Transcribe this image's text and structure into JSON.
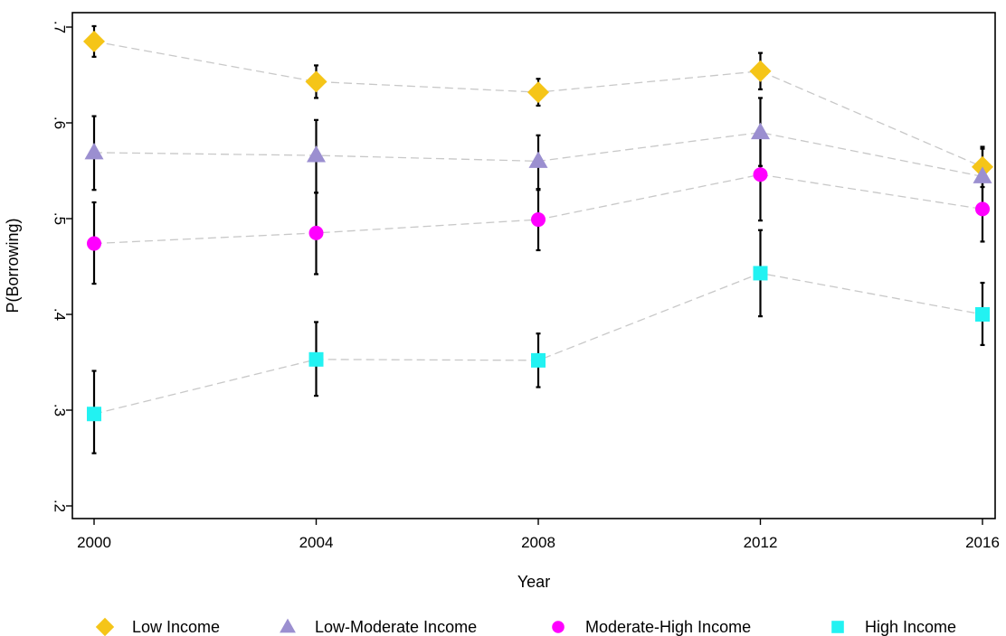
{
  "chart_data": {
    "type": "scatter",
    "title": "",
    "xlabel": "Year",
    "ylabel": "P(Borrowing)",
    "x": [
      2000,
      2004,
      2008,
      2012,
      2016
    ],
    "xticks": [
      "2000",
      "2004",
      "2008",
      "2012",
      "2016"
    ],
    "xlim": [
      2000,
      2016
    ],
    "yticks": [
      {
        "value": 0.2,
        "label": ".2"
      },
      {
        "value": 0.3,
        "label": ".3"
      },
      {
        "value": 0.4,
        "label": ".4"
      },
      {
        "value": 0.5,
        "label": ".5"
      },
      {
        "value": 0.6,
        "label": ".6"
      },
      {
        "value": 0.7,
        "label": ".7"
      }
    ],
    "ylim": [
      0.18,
      0.72
    ],
    "grid": false,
    "legend_position": "bottom",
    "connector_color": "#c8c8c8",
    "errorbar_color": "#000000",
    "series": [
      {
        "name": "Low Income",
        "marker": "diamond",
        "color": "#f5c518",
        "values": [
          0.685,
          0.643,
          0.632,
          0.654,
          0.554
        ],
        "ci_low": [
          0.669,
          0.626,
          0.618,
          0.635,
          0.533
        ],
        "ci_high": [
          0.701,
          0.66,
          0.646,
          0.673,
          0.575
        ]
      },
      {
        "name": "Low-Moderate Income",
        "marker": "triangle",
        "color": "#9b8fd0",
        "values": [
          0.569,
          0.566,
          0.56,
          0.59,
          0.544
        ],
        "ci_low": [
          0.53,
          0.527,
          0.53,
          0.555,
          0.515
        ],
        "ci_high": [
          0.607,
          0.603,
          0.587,
          0.626,
          0.573
        ]
      },
      {
        "name": "Moderate-High Income",
        "marker": "circle",
        "color": "#ff00ff",
        "values": [
          0.474,
          0.485,
          0.499,
          0.546,
          0.51
        ],
        "ci_low": [
          0.432,
          0.442,
          0.467,
          0.498,
          0.476
        ],
        "ci_high": [
          0.517,
          0.527,
          0.531,
          0.594,
          0.544
        ]
      },
      {
        "name": "High Income",
        "marker": "square",
        "color": "#22f2f2",
        "values": [
          0.296,
          0.353,
          0.352,
          0.443,
          0.4
        ],
        "ci_low": [
          0.255,
          0.315,
          0.324,
          0.398,
          0.368
        ],
        "ci_high": [
          0.341,
          0.392,
          0.38,
          0.488,
          0.433
        ]
      }
    ]
  }
}
